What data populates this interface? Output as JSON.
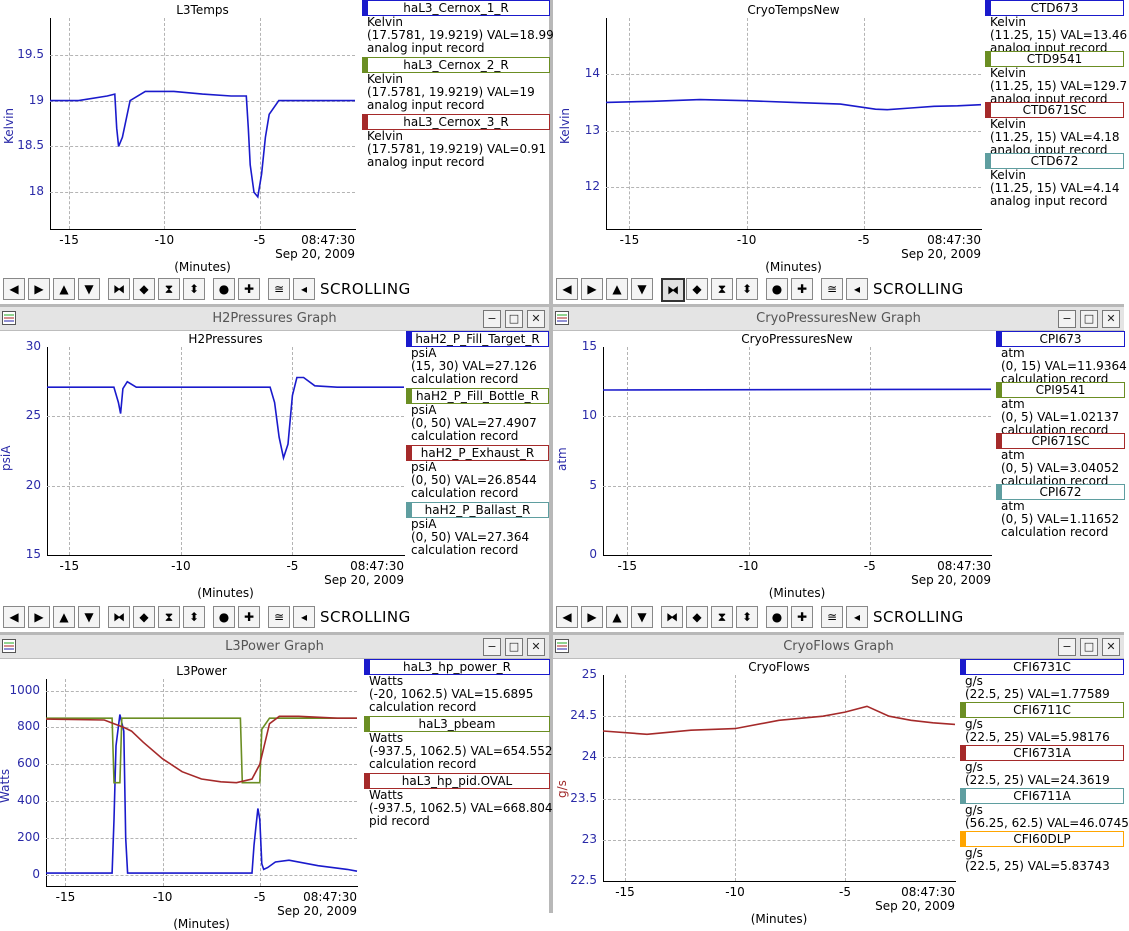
{
  "panels": [
    {
      "key": "tl",
      "window_title": "",
      "plot_title": "L3Temps",
      "ylabel": "Kelvin",
      "yticks": [
        "19.5",
        "19",
        "18.5",
        "18"
      ],
      "xticks": [
        "-15",
        "-10",
        "-5"
      ],
      "xunits": "(Minutes)",
      "time": "08:47:30",
      "date": "Sep 20, 2009",
      "legend": [
        {
          "name": "haL3_Cernox_1_R",
          "color": "#1a1acc",
          "lines": [
            "Kelvin",
            "(17.5781, 19.9219) VAL=18.99",
            "analog input record"
          ]
        },
        {
          "name": "haL3_Cernox_2_R",
          "color": "#6b8e23",
          "lines": [
            "Kelvin",
            "(17.5781, 19.9219) VAL=19",
            "analog input record"
          ]
        },
        {
          "name": "haL3_Cernox_3_R",
          "color": "#a52a2a",
          "lines": [
            "Kelvin",
            "(17.5781, 19.9219) VAL=0.91",
            "analog input record"
          ]
        }
      ],
      "toolbar_status": "SCROLLING"
    },
    {
      "key": "tr",
      "window_title": "",
      "plot_title": "CryoTempsNew",
      "ylabel": "Kelvin",
      "yticks": [
        "14",
        "13",
        "12"
      ],
      "xticks": [
        "-15",
        "-10",
        "-5"
      ],
      "xunits": "(Minutes)",
      "time": "08:47:30",
      "date": "Sep 20, 2009",
      "legend": [
        {
          "name": "CTD673",
          "color": "#1a1acc",
          "lines": [
            "Kelvin",
            "(11.25, 15) VAL=13.46",
            "analog input record"
          ]
        },
        {
          "name": "CTD9541",
          "color": "#6b8e23",
          "lines": [
            "Kelvin",
            "(11.25, 15) VAL=129.7",
            "analog input record"
          ]
        },
        {
          "name": "CTD671SC",
          "color": "#a52a2a",
          "lines": [
            "Kelvin",
            "(11.25, 15) VAL=4.18",
            "analog input record"
          ]
        },
        {
          "name": "CTD672",
          "color": "#5f9ea0",
          "lines": [
            "Kelvin",
            "(11.25, 15) VAL=4.14",
            "analog input record"
          ]
        }
      ],
      "toolbar_status": "SCROLLING"
    },
    {
      "key": "ml",
      "window_title": "H2Pressures Graph",
      "plot_title": "H2Pressures",
      "ylabel": "psiA",
      "yticks": [
        "30",
        "25",
        "20",
        "15"
      ],
      "xticks": [
        "-15",
        "-10",
        "-5"
      ],
      "xunits": "(Minutes)",
      "time": "08:47:30",
      "date": "Sep 20, 2009",
      "legend": [
        {
          "name": "haH2_P_Fill_Target_R",
          "color": "#1a1acc",
          "lines": [
            "psiA",
            "(15, 30) VAL=27.126",
            "calculation record"
          ]
        },
        {
          "name": "haH2_P_Fill_Bottle_R",
          "color": "#6b8e23",
          "lines": [
            "psiA",
            "(0, 50) VAL=27.4907",
            "calculation record"
          ]
        },
        {
          "name": "haH2_P_Exhaust_R",
          "color": "#a52a2a",
          "lines": [
            "psiA",
            "(0, 50) VAL=26.8544",
            "calculation record"
          ]
        },
        {
          "name": "haH2_P_Ballast_R",
          "color": "#5f9ea0",
          "lines": [
            "psiA",
            "(0, 50) VAL=27.364",
            "calculation record"
          ]
        }
      ],
      "toolbar_status": "SCROLLING"
    },
    {
      "key": "mr",
      "window_title": "CryoPressuresNew Graph",
      "plot_title": "CryoPressuresNew",
      "ylabel": "atm",
      "yticks": [
        "15",
        "10",
        "5",
        "0"
      ],
      "xticks": [
        "-15",
        "-10",
        "-5"
      ],
      "xunits": "(Minutes)",
      "time": "08:47:30",
      "date": "Sep 20, 2009",
      "legend": [
        {
          "name": "CPI673",
          "color": "#1a1acc",
          "lines": [
            "atm",
            "(0, 15) VAL=11.9364",
            "calculation record"
          ]
        },
        {
          "name": "CPI9541",
          "color": "#6b8e23",
          "lines": [
            "atm",
            "(0, 5) VAL=1.02137",
            "calculation record"
          ]
        },
        {
          "name": "CPI671SC",
          "color": "#a52a2a",
          "lines": [
            "atm",
            "(0, 5) VAL=3.04052",
            "calculation record"
          ]
        },
        {
          "name": "CPI672",
          "color": "#5f9ea0",
          "lines": [
            "atm",
            "(0, 5) VAL=1.11652",
            "calculation record"
          ]
        }
      ],
      "toolbar_status": "SCROLLING"
    },
    {
      "key": "bl",
      "window_title": "L3Power Graph",
      "plot_title": "L3Power",
      "ylabel": "Watts",
      "yticks": [
        "1000",
        "800",
        "600",
        "400",
        "200",
        "0"
      ],
      "xticks": [
        "-15",
        "-10",
        "-5"
      ],
      "xunits": "(Minutes)",
      "time": "08:47:30",
      "date": "Sep 20, 2009",
      "legend": [
        {
          "name": "haL3_hp_power_R",
          "color": "#1a1acc",
          "lines": [
            "Watts",
            "(-20, 1062.5) VAL=15.6895",
            "calculation record"
          ]
        },
        {
          "name": "haL3_pbeam",
          "color": "#6b8e23",
          "lines": [
            "Watts",
            "(-937.5, 1062.5) VAL=654.552",
            "calculation record"
          ]
        },
        {
          "name": "haL3_hp_pid.OVAL",
          "color": "#a52a2a",
          "lines": [
            "Watts",
            "(-937.5, 1062.5) VAL=668.804",
            "pid record"
          ]
        }
      ],
      "toolbar_status": ""
    },
    {
      "key": "br",
      "window_title": "CryoFlows Graph",
      "plot_title": "CryoFlows",
      "ylabel": "g/s",
      "yticks": [
        "25",
        "24.5",
        "24",
        "23.5",
        "23",
        "22.5"
      ],
      "xticks": [
        "-15",
        "-10",
        "-5"
      ],
      "xunits": "(Minutes)",
      "time": "08:47:30",
      "date": "Sep 20, 2009",
      "legend": [
        {
          "name": "CFI6731C",
          "color": "#1a1acc",
          "lines": [
            "g/s",
            "(22.5, 25) VAL=1.77589"
          ]
        },
        {
          "name": "CFI6711C",
          "color": "#6b8e23",
          "lines": [
            "g/s",
            "(22.5, 25) VAL=5.98176"
          ]
        },
        {
          "name": "CFI6731A",
          "color": "#a52a2a",
          "lines": [
            "g/s",
            "(22.5, 25) VAL=24.3619"
          ]
        },
        {
          "name": "CFI6711A",
          "color": "#5f9ea0",
          "lines": [
            "g/s",
            "(56.25, 62.5) VAL=46.0745"
          ]
        },
        {
          "name": "CFI60DLP",
          "color": "#ffa500",
          "lines": [
            "g/s",
            "(22.5, 25) VAL=5.83743"
          ]
        }
      ],
      "toolbar_status": ""
    }
  ],
  "chart_data": [
    {
      "type": "line",
      "title": "L3Temps",
      "xlabel": "(Minutes)",
      "ylabel": "Kelvin",
      "xlim": [
        -16,
        0
      ],
      "ylim": [
        17.6,
        19.9
      ],
      "series": [
        {
          "name": "haL3_Cernox_1_R",
          "color": "#1a1acc",
          "x": [
            -16,
            -14.5,
            -13,
            -12.6,
            -12.5,
            -12.4,
            -12.2,
            -11.8,
            -11,
            -9.5,
            -8,
            -6.5,
            -5.7,
            -5.6,
            -5.5,
            -5.3,
            -5.1,
            -4.9,
            -4.7,
            -4.5,
            -4,
            -3,
            -2,
            -1,
            0
          ],
          "y": [
            19.0,
            19.0,
            19.05,
            19.07,
            18.7,
            18.5,
            18.6,
            19.0,
            19.1,
            19.1,
            19.07,
            19.05,
            19.05,
            18.7,
            18.3,
            18.0,
            17.95,
            18.2,
            18.6,
            18.85,
            19.0,
            19.0,
            19.0,
            19.0,
            19.0
          ]
        }
      ]
    },
    {
      "type": "line",
      "title": "CryoTempsNew",
      "xlabel": "(Minutes)",
      "ylabel": "Kelvin",
      "xlim": [
        -16,
        0
      ],
      "ylim": [
        11.25,
        15
      ],
      "series": [
        {
          "name": "CTD673",
          "color": "#1a1acc",
          "x": [
            -16,
            -14,
            -12,
            -10,
            -8,
            -6,
            -4.5,
            -4,
            -3,
            -2,
            -1,
            0
          ],
          "y": [
            13.5,
            13.52,
            13.55,
            13.53,
            13.5,
            13.47,
            13.38,
            13.37,
            13.4,
            13.43,
            13.44,
            13.46
          ]
        }
      ]
    },
    {
      "type": "line",
      "title": "H2Pressures",
      "xlabel": "(Minutes)",
      "ylabel": "psiA",
      "xlim": [
        -16,
        0
      ],
      "ylim": [
        15,
        30
      ],
      "series": [
        {
          "name": "haH2_P_Fill_Target_R",
          "color": "#1a1acc",
          "x": [
            -16,
            -13,
            -12.8,
            -12.7,
            -12.6,
            -12.4,
            -12,
            -7,
            -6,
            -5.8,
            -5.6,
            -5.4,
            -5.2,
            -5.0,
            -4.8,
            -4.5,
            -4,
            -3,
            0
          ],
          "y": [
            27.1,
            27.1,
            26.0,
            25.2,
            27.0,
            27.5,
            27.1,
            27.1,
            27.1,
            26.0,
            23.5,
            22.0,
            23.0,
            26.5,
            27.8,
            27.8,
            27.2,
            27.1,
            27.1
          ]
        }
      ]
    },
    {
      "type": "line",
      "title": "CryoPressuresNew",
      "xlabel": "(Minutes)",
      "ylabel": "atm",
      "xlim": [
        -16,
        0
      ],
      "ylim": [
        0,
        15
      ],
      "series": [
        {
          "name": "CPI673",
          "color": "#1a1acc",
          "x": [
            -16,
            0
          ],
          "y": [
            11.9,
            11.95
          ]
        }
      ]
    },
    {
      "type": "line",
      "title": "L3Power",
      "xlabel": "(Minutes)",
      "ylabel": "Watts",
      "xlim": [
        -16,
        0
      ],
      "ylim": [
        -60,
        1062.5
      ],
      "series": [
        {
          "name": "haL3_hp_power_R",
          "color": "#1a1acc",
          "x": [
            -16,
            -12.6,
            -12.5,
            -12.4,
            -12.2,
            -12.0,
            -11.9,
            -11.8,
            -11.6,
            -11.5,
            -6,
            -5.4,
            -5.3,
            -5.2,
            -5.1,
            -5.0,
            -4.9,
            -4.8,
            -4.6,
            -4.2,
            -3.5,
            -2,
            -0.5,
            0
          ],
          "y": [
            10,
            10,
            300,
            700,
            870,
            780,
            200,
            10,
            10,
            10,
            10,
            10,
            160,
            260,
            360,
            300,
            60,
            30,
            40,
            70,
            80,
            50,
            30,
            20
          ]
        },
        {
          "name": "haL3_pbeam",
          "color": "#6b8e23",
          "x": [
            -16,
            -12.6,
            -12.5,
            -12.2,
            -12.1,
            -12.0,
            -11.5,
            -6,
            -5.9,
            -5.0,
            -4.9,
            -4.5,
            -4,
            -2,
            0
          ],
          "y": [
            850,
            850,
            500,
            500,
            850,
            850,
            850,
            850,
            500,
            500,
            790,
            850,
            850,
            850,
            850
          ]
        },
        {
          "name": "haL3_hp_pid.OVAL",
          "color": "#a52a2a",
          "x": [
            -16,
            -13,
            -12.5,
            -12.0,
            -11.6,
            -11.0,
            -10,
            -9,
            -8,
            -7,
            -6.2,
            -5.4,
            -5.0,
            -4.5,
            -4,
            -3,
            -1,
            0
          ],
          "y": [
            845,
            840,
            820,
            800,
            780,
            720,
            630,
            560,
            520,
            505,
            500,
            520,
            600,
            820,
            860,
            860,
            850,
            850
          ]
        }
      ]
    },
    {
      "type": "line",
      "title": "CryoFlows",
      "xlabel": "(Minutes)",
      "ylabel": "g/s",
      "xlim": [
        -16,
        0
      ],
      "ylim": [
        22.5,
        25
      ],
      "series": [
        {
          "name": "CFI6731A",
          "color": "#a52a2a",
          "x": [
            -16,
            -14,
            -12,
            -10,
            -8,
            -6,
            -5,
            -4,
            -3,
            -2,
            -1,
            0
          ],
          "y": [
            24.32,
            24.28,
            24.33,
            24.35,
            24.45,
            24.5,
            24.55,
            24.62,
            24.5,
            24.45,
            24.42,
            24.4
          ]
        }
      ]
    }
  ]
}
